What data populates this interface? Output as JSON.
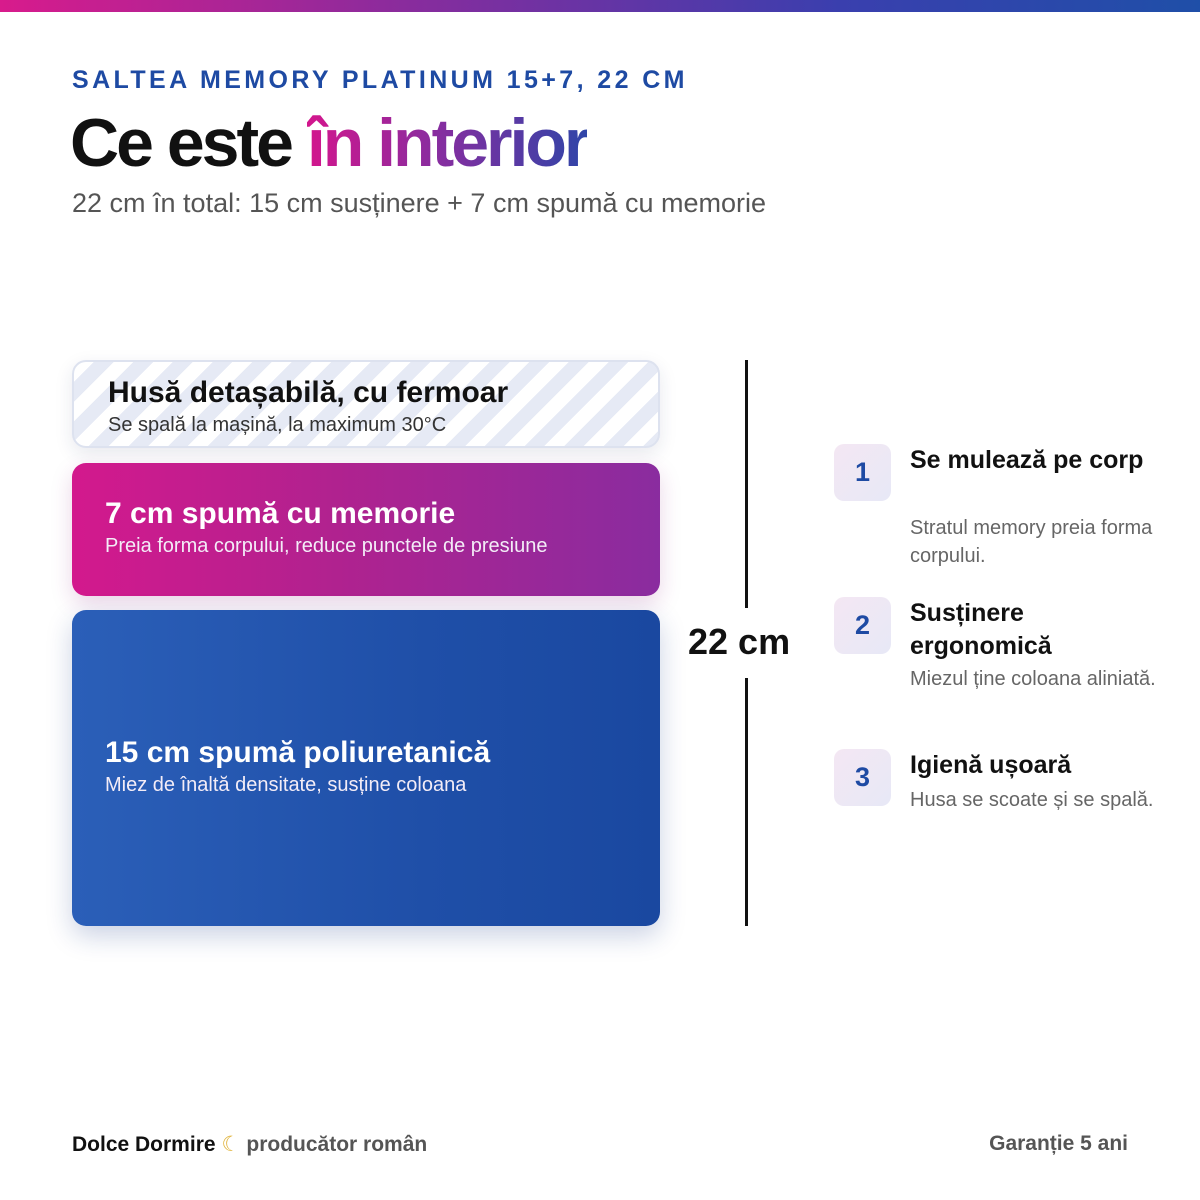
{
  "header": {
    "eyebrow": "SALTEA MEMORY PLATINUM 15+7, 22 CM",
    "title_plain": "Ce este ",
    "title_accent": "în interior",
    "subtitle": "22 cm în total: 15 cm susținere + 7 cm spumă cu memorie"
  },
  "layers": [
    {
      "title": "Husă detașabilă, cu fermoar",
      "desc": "Se spală la mașină, la maximum 30°C"
    },
    {
      "title": "7 cm spumă cu memorie",
      "desc": "Preia forma corpului, reduce punctele de presiune"
    },
    {
      "title": "15 cm spumă poliuretanică",
      "desc": "Miez de înaltă densitate, susține coloana"
    }
  ],
  "measure": {
    "label": "22 cm"
  },
  "benefits": [
    {
      "num": "1",
      "title": "Se mulează pe corp",
      "desc": "Stratul memory preia forma corpului."
    },
    {
      "num": "2",
      "title": "Susținere ergonomică",
      "desc": "Miezul ține coloana aliniată."
    },
    {
      "num": "3",
      "title": "Igienă ușoară",
      "desc": "Husa se scoate și se spală."
    }
  ],
  "footer": {
    "brand": "Dolce Dormire",
    "moon": "☾",
    "tagline": "producător român",
    "warranty": "Garanție 5 ani"
  },
  "colors": {
    "accent_blue": "#1e4aa3",
    "accent_magenta": "#d3198d",
    "accent_purple": "#8a2c9f"
  }
}
